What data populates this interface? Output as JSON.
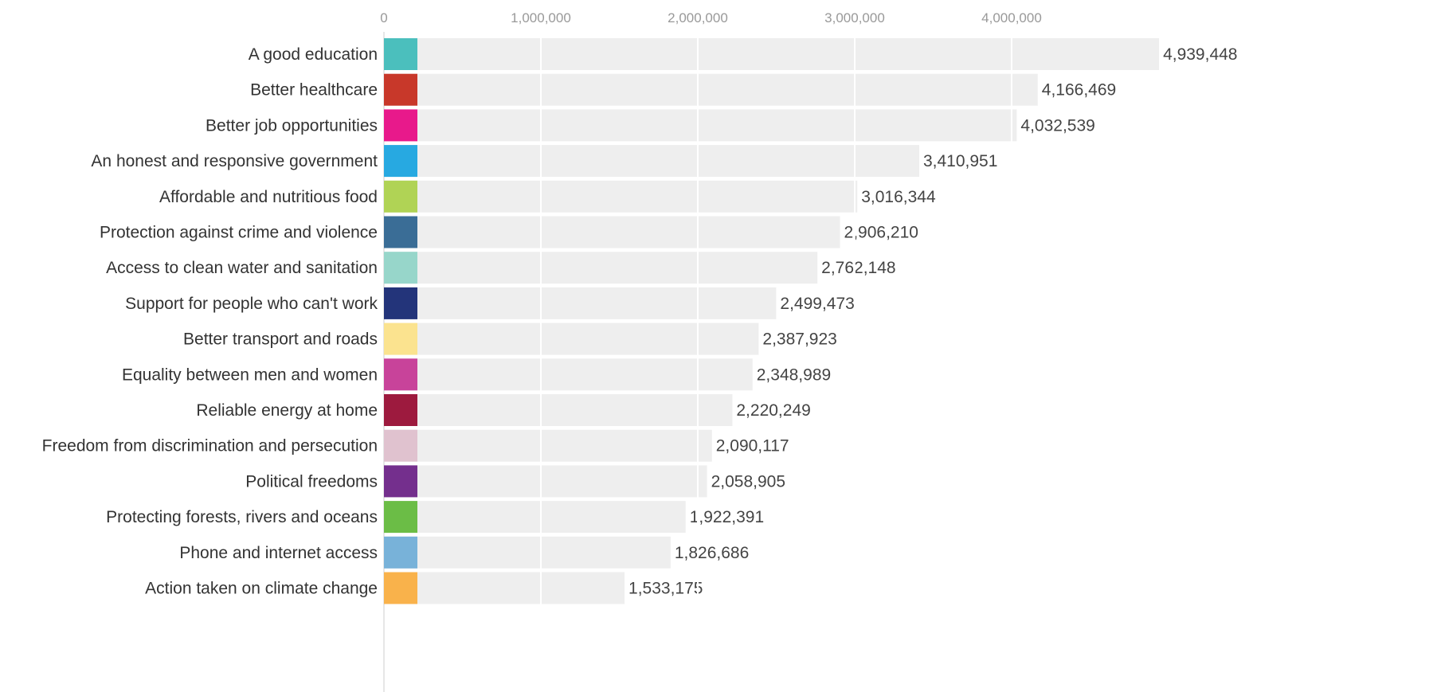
{
  "chart_data": {
    "type": "bar",
    "orientation": "horizontal",
    "title": "",
    "xlabel": "",
    "ylabel": "",
    "xlim": [
      0,
      5000000
    ],
    "x_ticks": [
      0,
      1000000,
      2000000,
      3000000,
      4000000
    ],
    "x_tick_labels": [
      "0",
      "1,000,000",
      "2,000,000",
      "3,000,000",
      "4,000,000"
    ],
    "axis_position": "top",
    "grid": true,
    "legend": "none",
    "categories": [
      "A good education",
      "Better healthcare",
      "Better job opportunities",
      "An honest and responsive government",
      "Affordable and nutritious food",
      "Protection against crime and violence",
      "Access to clean water and sanitation",
      "Support for people who can't work",
      "Better transport and roads",
      "Equality between men and women",
      "Reliable energy at home",
      "Freedom from discrimination and persecution",
      "Political freedoms",
      "Protecting forests, rivers and oceans",
      "Phone and internet access",
      "Action taken on climate change"
    ],
    "values": [
      4939448,
      4166469,
      4032539,
      3410951,
      3016344,
      2906210,
      2762148,
      2499473,
      2387923,
      2348989,
      2220249,
      2090117,
      2058905,
      1922391,
      1826686,
      1533175
    ],
    "value_labels": [
      "4,939,448",
      "4,166,469",
      "4,032,539",
      "3,410,951",
      "3,016,344",
      "2,906,210",
      "2,762,148",
      "2,499,473",
      "2,387,923",
      "2,348,989",
      "2,220,249",
      "2,090,117",
      "2,058,905",
      "1,922,391",
      "1,826,686",
      "1,533,175"
    ],
    "bar_color": "#eeeeee",
    "swatch_colors": [
      "#4bbfbd",
      "#c8382a",
      "#e8198b",
      "#27a9e1",
      "#b0d355",
      "#3a6d96",
      "#97d6ca",
      "#23347a",
      "#fbe38f",
      "#c8439a",
      "#9d1a3e",
      "#e0c2cf",
      "#742f8d",
      "#6bbd46",
      "#78b2d9",
      "#f9b24b"
    ]
  }
}
